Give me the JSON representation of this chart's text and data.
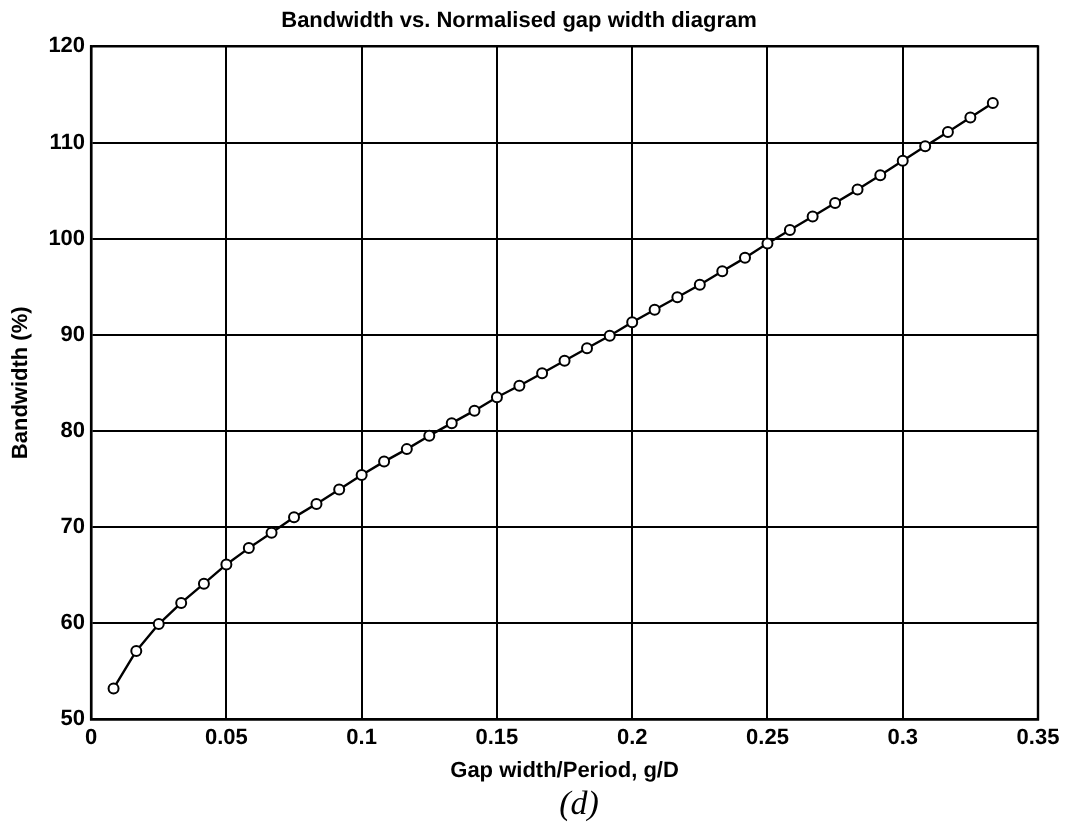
{
  "chart_data": {
    "type": "line",
    "title": "Bandwidth vs. Normalised gap width diagram",
    "xlabel": "Gap width/Period, g/D",
    "ylabel": "Bandwidth (%)",
    "annotations": [
      "(d)"
    ],
    "x": [
      0.0083,
      0.0167,
      0.025,
      0.0333,
      0.0417,
      0.05,
      0.0583,
      0.0667,
      0.075,
      0.0833,
      0.0917,
      0.1,
      0.1083,
      0.1167,
      0.125,
      0.1333,
      0.1417,
      0.15,
      0.1583,
      0.1667,
      0.175,
      0.1833,
      0.1917,
      0.2,
      0.2083,
      0.2167,
      0.225,
      0.2333,
      0.2417,
      0.25,
      0.2583,
      0.2667,
      0.275,
      0.2833,
      0.2917,
      0.3,
      0.3083,
      0.3167,
      0.325,
      0.3333
    ],
    "series": [
      {
        "color": "#000000",
        "values": [
          53.2,
          57.1,
          59.9,
          62.1,
          64.1,
          66.1,
          67.8,
          69.4,
          71.0,
          72.4,
          73.9,
          75.4,
          76.8,
          78.1,
          79.5,
          80.8,
          82.1,
          83.5,
          84.7,
          86.0,
          87.3,
          88.6,
          89.9,
          91.3,
          92.6,
          93.9,
          95.2,
          96.6,
          98.0,
          99.5,
          100.9,
          102.3,
          103.7,
          105.1,
          106.6,
          108.1,
          109.6,
          111.1,
          112.6,
          114.1
        ]
      }
    ],
    "xlim": [
      0,
      0.35
    ],
    "xticks": [
      0,
      0.05,
      0.1,
      0.15,
      0.2,
      0.25,
      0.3,
      0.35
    ],
    "ylim": [
      50,
      120
    ],
    "yticks": [
      50,
      60,
      70,
      80,
      90,
      100,
      110,
      120
    ],
    "grid": true,
    "legend": false,
    "marker": "circle",
    "line_style": "solid"
  }
}
